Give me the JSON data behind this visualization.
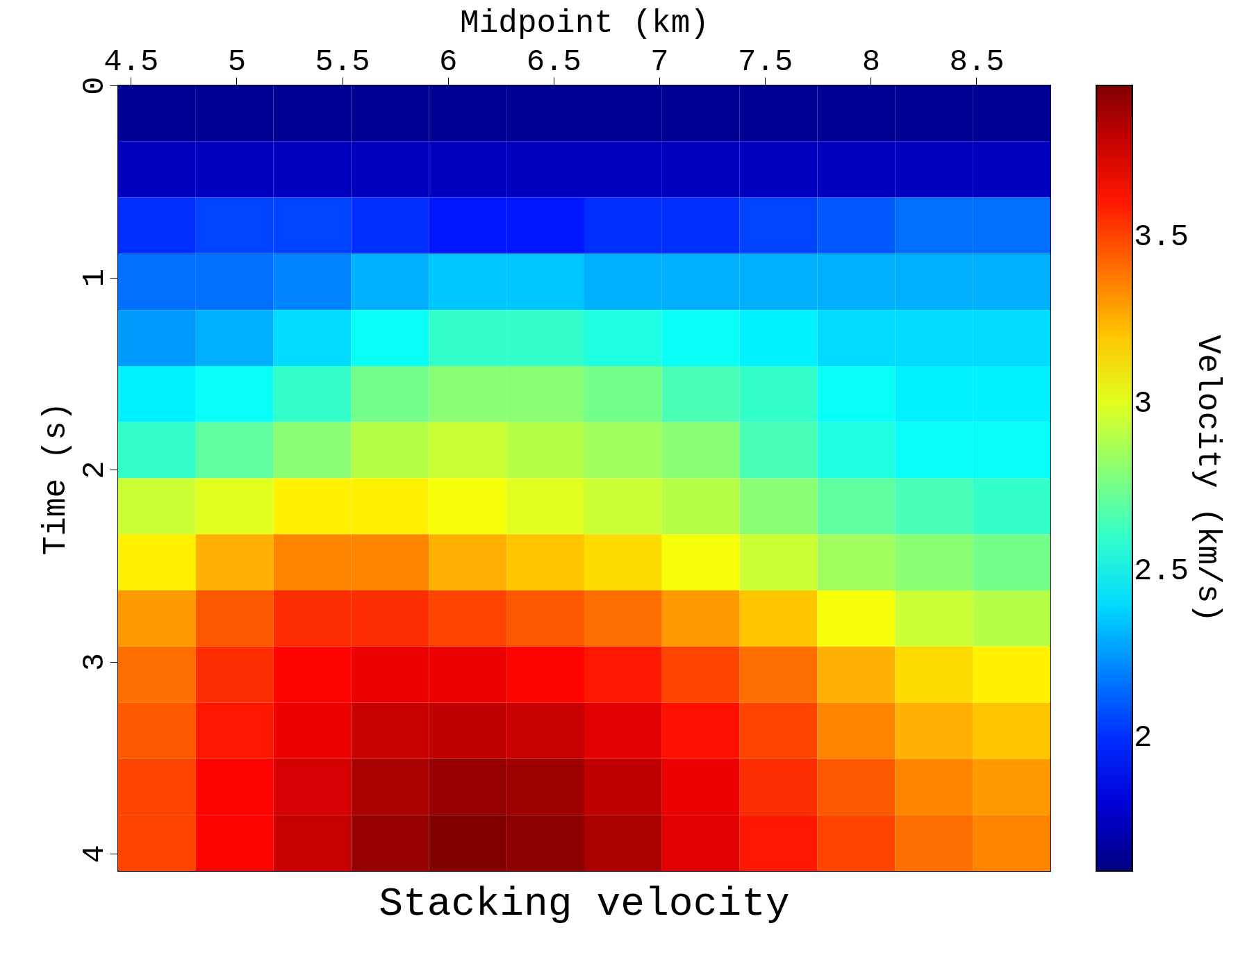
{
  "chart_data": {
    "type": "heatmap",
    "title": "Stacking velocity",
    "xlabel": "Midpoint (km)",
    "ylabel": "Time (s)",
    "clabel": "Velocity (km/s)",
    "xlim": [
      4.44,
      8.85
    ],
    "ylim": [
      4.09,
      0
    ],
    "xticks": [
      4.5,
      5,
      5.5,
      6,
      6.5,
      7,
      7.5,
      8,
      8.5
    ],
    "yticks": [
      0,
      1,
      2,
      3,
      4
    ],
    "clim": [
      1.6,
      3.95
    ],
    "cticks": [
      2,
      2.5,
      3,
      3.5
    ],
    "cells": [
      [
        1.65,
        1.65,
        1.65,
        1.65,
        1.65,
        1.65,
        1.65,
        1.65,
        1.65,
        1.65,
        1.65,
        1.65
      ],
      [
        1.75,
        1.75,
        1.75,
        1.75,
        1.75,
        1.75,
        1.75,
        1.75,
        1.75,
        1.75,
        1.75,
        1.75
      ],
      [
        2.0,
        2.05,
        2.05,
        2.0,
        1.95,
        1.95,
        2.0,
        2.0,
        2.05,
        2.1,
        2.15,
        2.15
      ],
      [
        2.15,
        2.15,
        2.2,
        2.3,
        2.35,
        2.35,
        2.3,
        2.3,
        2.3,
        2.3,
        2.3,
        2.3
      ],
      [
        2.25,
        2.3,
        2.4,
        2.5,
        2.6,
        2.6,
        2.55,
        2.5,
        2.45,
        2.4,
        2.4,
        2.4
      ],
      [
        2.45,
        2.5,
        2.6,
        2.75,
        2.8,
        2.8,
        2.75,
        2.65,
        2.6,
        2.5,
        2.45,
        2.45
      ],
      [
        2.6,
        2.7,
        2.8,
        2.9,
        2.95,
        2.9,
        2.85,
        2.8,
        2.65,
        2.55,
        2.5,
        2.5
      ],
      [
        2.95,
        3.0,
        3.1,
        3.1,
        3.05,
        3.0,
        2.95,
        2.9,
        2.8,
        2.7,
        2.65,
        2.6
      ],
      [
        3.1,
        3.25,
        3.35,
        3.35,
        3.25,
        3.2,
        3.15,
        3.05,
        2.95,
        2.85,
        2.8,
        2.75
      ],
      [
        3.3,
        3.45,
        3.55,
        3.55,
        3.5,
        3.45,
        3.4,
        3.3,
        3.2,
        3.05,
        2.95,
        2.9
      ],
      [
        3.4,
        3.55,
        3.65,
        3.7,
        3.7,
        3.65,
        3.6,
        3.5,
        3.4,
        3.25,
        3.15,
        3.1
      ],
      [
        3.45,
        3.6,
        3.7,
        3.78,
        3.8,
        3.78,
        3.72,
        3.62,
        3.5,
        3.35,
        3.25,
        3.2
      ],
      [
        3.5,
        3.65,
        3.75,
        3.85,
        3.9,
        3.88,
        3.8,
        3.7,
        3.55,
        3.45,
        3.35,
        3.3
      ],
      [
        3.5,
        3.65,
        3.78,
        3.9,
        3.94,
        3.92,
        3.85,
        3.72,
        3.6,
        3.5,
        3.4,
        3.35
      ]
    ]
  }
}
